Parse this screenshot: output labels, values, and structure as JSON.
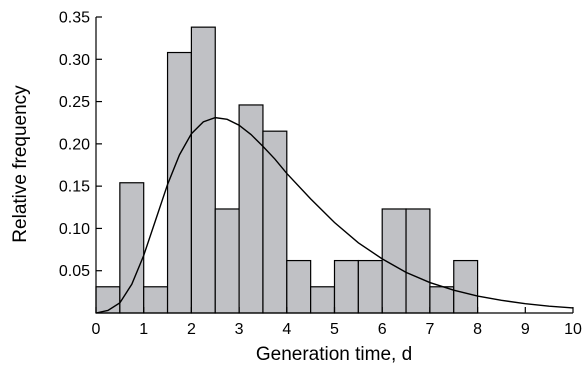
{
  "chart_data": {
    "type": "bar",
    "title": "",
    "xlabel": "Generation time, d",
    "ylabel": "Relative frequency",
    "xlim": [
      0,
      10
    ],
    "ylim": [
      0,
      0.35
    ],
    "x_ticks": [
      "0",
      "1",
      "2",
      "3",
      "4",
      "5",
      "6",
      "7",
      "8",
      "9",
      "10"
    ],
    "y_ticks": [
      "0.05",
      "0.10",
      "0.15",
      "0.20",
      "0.25",
      "0.30",
      "0.35"
    ],
    "grid": false,
    "legend": "none",
    "bin_width": 0.5,
    "bins": [
      {
        "start": 0.0,
        "value": 0.031
      },
      {
        "start": 0.5,
        "value": 0.154
      },
      {
        "start": 1.0,
        "value": 0.031
      },
      {
        "start": 1.5,
        "value": 0.308
      },
      {
        "start": 2.0,
        "value": 0.338
      },
      {
        "start": 2.5,
        "value": 0.123
      },
      {
        "start": 3.0,
        "value": 0.246
      },
      {
        "start": 3.5,
        "value": 0.215
      },
      {
        "start": 4.0,
        "value": 0.062
      },
      {
        "start": 4.5,
        "value": 0.031
      },
      {
        "start": 5.0,
        "value": 0.062
      },
      {
        "start": 5.5,
        "value": 0.062
      },
      {
        "start": 6.0,
        "value": 0.123
      },
      {
        "start": 6.5,
        "value": 0.123
      },
      {
        "start": 7.0,
        "value": 0.031
      },
      {
        "start": 7.5,
        "value": 0.062
      }
    ],
    "fitted_curve": {
      "x": [
        0,
        0.25,
        0.5,
        0.75,
        1.0,
        1.25,
        1.5,
        1.75,
        2.0,
        2.25,
        2.5,
        2.75,
        3.0,
        3.25,
        3.5,
        3.75,
        4.0,
        4.5,
        5.0,
        5.5,
        6.0,
        6.5,
        7.0,
        7.5,
        8.0,
        8.5,
        9.0,
        9.5,
        10.0
      ],
      "y": [
        0.0,
        0.003,
        0.012,
        0.034,
        0.068,
        0.11,
        0.152,
        0.187,
        0.212,
        0.226,
        0.231,
        0.229,
        0.222,
        0.211,
        0.197,
        0.182,
        0.165,
        0.135,
        0.107,
        0.083,
        0.064,
        0.048,
        0.036,
        0.027,
        0.02,
        0.015,
        0.011,
        0.008,
        0.006
      ]
    },
    "colors": {
      "bar_fill": "#c0c1c5",
      "stroke": "#000000"
    }
  }
}
